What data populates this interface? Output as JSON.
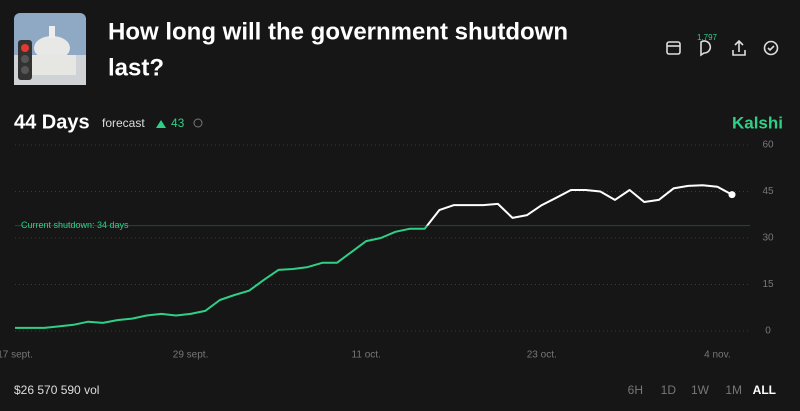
{
  "header": {
    "title_lines": [
      "How long will the government shutdown",
      "last?"
    ],
    "comments": "1,797"
  },
  "forecast": {
    "value": "44 Days",
    "label": "forecast",
    "change": 43
  },
  "brand": "Kalshi",
  "chart_data": {
    "type": "line",
    "categories": [
      "17 sept.",
      null,
      null,
      null,
      null,
      null,
      null,
      null,
      null,
      null,
      null,
      null,
      "29 sept.",
      null,
      null,
      null,
      null,
      null,
      null,
      null,
      null,
      null,
      null,
      null,
      "11 oct.",
      null,
      null,
      null,
      null,
      null,
      null,
      null,
      null,
      null,
      null,
      null,
      "23 oct.",
      null,
      null,
      null,
      null,
      null,
      null,
      null,
      null,
      null,
      null,
      null,
      "4 nov.",
      null
    ],
    "values": [
      1,
      1,
      1,
      1.5,
      2,
      3,
      2.6,
      3.5,
      4,
      5,
      5.5,
      5,
      5.5,
      6.5,
      10,
      11.6,
      13,
      16.5,
      19.7,
      20,
      20.6,
      22,
      22,
      25.5,
      29,
      30,
      32,
      33,
      33,
      39,
      40.6,
      40.6,
      40.6,
      41,
      36.5,
      37.4,
      40.6,
      43,
      45.5,
      45.5,
      45,
      42.3,
      45.5,
      41.6,
      42.3,
      46,
      46.8,
      47,
      46.5,
      44
    ],
    "color": "#2fcf86",
    "above_color": "#ffffff",
    "ylim": [
      0,
      60
    ],
    "yticks": [
      0,
      15,
      30,
      45,
      60
    ],
    "grid": true,
    "annotation": {
      "text": "Current shutdown: 34 days",
      "value": 34
    }
  },
  "footer": {
    "volume": "$26 570 590 vol",
    "ranges": [
      "6H",
      "1D",
      "1W",
      "1M",
      "ALL"
    ],
    "active_range": 4
  }
}
